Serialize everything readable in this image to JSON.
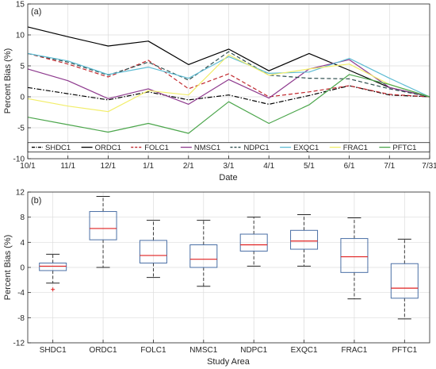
{
  "chart_data": [
    {
      "type": "line",
      "panel_label": "(a)",
      "xlabel": "Date",
      "ylabel": "Percent Bias (%)",
      "x": [
        "10/1",
        "11/1",
        "12/1",
        "1/1",
        "2/1",
        "3/1",
        "4/1",
        "5/1",
        "6/1",
        "7/1",
        "7/31"
      ],
      "ylim": [
        -10,
        15
      ],
      "yticks": [
        -10,
        -5,
        0,
        5,
        10,
        15
      ],
      "grid": true,
      "legend_placement": "bottom",
      "series": [
        {
          "name": "SHDC1",
          "color": "#000000",
          "dash": "dashdot",
          "values": [
            1.5,
            0.5,
            -0.5,
            0.8,
            -0.5,
            0.3,
            -1.2,
            0.2,
            1.8,
            0.3,
            0.0
          ]
        },
        {
          "name": "ORDC1",
          "color": "#000000",
          "dash": "solid",
          "values": [
            11.3,
            9.7,
            8.2,
            9.0,
            5.2,
            7.7,
            4.2,
            7.0,
            4.3,
            1.5,
            0.0
          ]
        },
        {
          "name": "FOLC1",
          "color": "#c0272d",
          "dash": "dashed",
          "values": [
            7.0,
            5.3,
            3.2,
            5.9,
            1.3,
            3.7,
            0.0,
            0.8,
            1.8,
            0.4,
            0.0
          ]
        },
        {
          "name": "NMSC1",
          "color": "#8e3a8e",
          "dash": "solid",
          "values": [
            4.5,
            2.6,
            -0.3,
            1.3,
            -1.2,
            2.8,
            -0.2,
            4.5,
            6.0,
            1.5,
            0.0
          ]
        },
        {
          "name": "NDPC1",
          "color": "#2f4f4f",
          "dash": "dashed",
          "values": [
            7.0,
            5.6,
            3.5,
            5.6,
            2.7,
            7.3,
            3.5,
            3.0,
            2.9,
            1.3,
            0.0
          ]
        },
        {
          "name": "EXQC1",
          "color": "#5fbcd3",
          "dash": "solid",
          "values": [
            7.0,
            5.8,
            3.6,
            4.8,
            3.0,
            6.5,
            3.8,
            4.0,
            6.2,
            3.0,
            0.0
          ]
        },
        {
          "name": "FRAC1",
          "color": "#f2ee6b",
          "dash": "solid",
          "values": [
            -0.3,
            -1.5,
            -2.4,
            1.0,
            0.3,
            6.8,
            3.5,
            4.5,
            5.3,
            2.0,
            0.0
          ]
        },
        {
          "name": "PFTC1",
          "color": "#4ca64c",
          "dash": "solid",
          "values": [
            -3.3,
            -4.5,
            -5.7,
            -4.3,
            -5.9,
            -0.8,
            -4.3,
            -1.3,
            3.6,
            2.0,
            0.0
          ]
        }
      ]
    },
    {
      "type": "box",
      "panel_label": "(b)",
      "xlabel": "Study Area",
      "ylabel": "Percent Bias (%)",
      "categories": [
        "SHDC1",
        "ORDC1",
        "FOLC1",
        "NMSC1",
        "NDPC1",
        "EXQC1",
        "FRAC1",
        "PFTC1"
      ],
      "ylim": [
        -12,
        12
      ],
      "yticks": [
        -12,
        -8,
        -4,
        0,
        4,
        8,
        12
      ],
      "grid": true,
      "box_color": "#4a6fa5",
      "median_color": "#e02020",
      "boxes": [
        {
          "min": -2.5,
          "q1": -0.5,
          "median": 0.2,
          "q3": 0.7,
          "max": 2.1,
          "outliers": [
            -3.5
          ]
        },
        {
          "min": 0.0,
          "q1": 4.4,
          "median": 6.2,
          "q3": 8.9,
          "max": 11.3,
          "outliers": []
        },
        {
          "min": -1.6,
          "q1": 0.7,
          "median": 1.9,
          "q3": 4.3,
          "max": 7.5,
          "outliers": []
        },
        {
          "min": -3.0,
          "q1": 0.0,
          "median": 1.3,
          "q3": 3.6,
          "max": 7.5,
          "outliers": []
        },
        {
          "min": 0.2,
          "q1": 2.6,
          "median": 3.6,
          "q3": 5.3,
          "max": 8.0,
          "outliers": []
        },
        {
          "min": 0.2,
          "q1": 2.9,
          "median": 4.2,
          "q3": 5.9,
          "max": 8.4,
          "outliers": []
        },
        {
          "min": -5.0,
          "q1": -0.8,
          "median": 1.7,
          "q3": 4.6,
          "max": 7.9,
          "outliers": []
        },
        {
          "min": -8.2,
          "q1": -4.9,
          "median": -3.3,
          "q3": 0.6,
          "max": 4.5,
          "outliers": []
        }
      ]
    }
  ]
}
